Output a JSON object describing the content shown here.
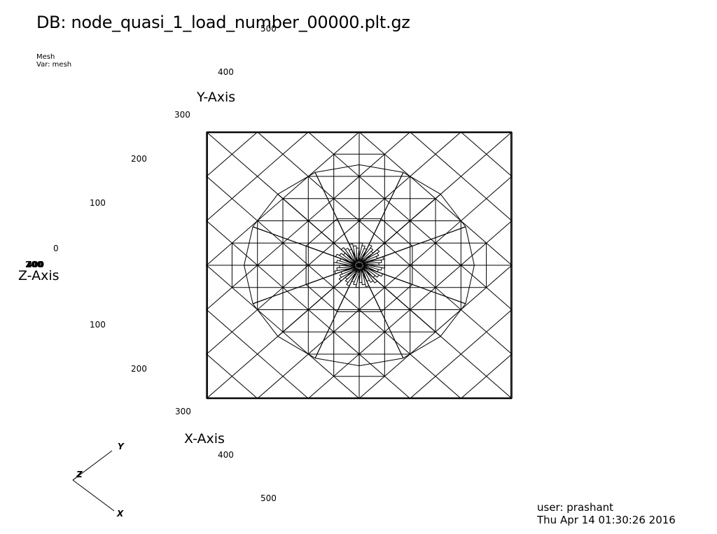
{
  "header": {
    "db_title": "DB: node_quasi_1_load_number_00000.plt.gz"
  },
  "plot_info": {
    "plot_name": "Mesh",
    "var_line": "Var: mesh"
  },
  "axes": {
    "x_title": "X-Axis",
    "y_title": "Y-Axis",
    "z_title": "Z-Axis",
    "y_ticks": [
      "0",
      "100",
      "200",
      "300",
      "400",
      "500"
    ],
    "x_ticks": [
      "100",
      "200",
      "300",
      "400",
      "500"
    ],
    "z_ticks": [
      "200",
      "400"
    ]
  },
  "triad": {
    "x_label": "X",
    "y_label": "Y",
    "z_label": "Z"
  },
  "footer": {
    "user": "user: prashant",
    "date": "Thu Apr 14 01:30:26 2016"
  },
  "colors": {
    "background": "#ffffff",
    "mesh": "#000000"
  }
}
